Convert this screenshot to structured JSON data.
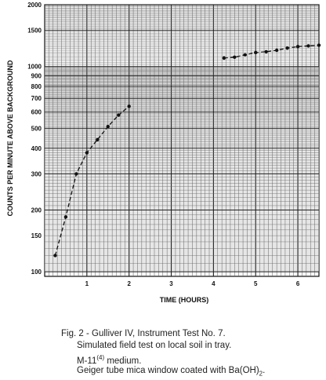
{
  "chart_data": {
    "type": "line",
    "title": "",
    "xlabel": "TIME (HOURS)",
    "ylabel": "COUNTS PER MINUTE ABOVE BACKGROUND",
    "yscale": "log",
    "xlim": [
      0,
      6.5
    ],
    "ylim": [
      95,
      2000
    ],
    "x_ticks": [
      "1",
      "2",
      "3",
      "4",
      "5",
      "6"
    ],
    "y_ticks": [
      "100",
      "150",
      "200",
      "300",
      "400",
      "500",
      "600",
      "700",
      "800",
      "900",
      "1000",
      "1500",
      "2000"
    ],
    "grid": true,
    "series": [
      {
        "x": [
          0.25,
          0.5,
          0.75,
          1.0,
          1.25,
          1.5,
          1.75,
          2.0,
          4.25,
          4.5,
          4.75,
          5.0,
          5.25,
          5.5,
          5.75,
          6.0,
          6.25,
          6.5
        ],
        "values": [
          120,
          185,
          300,
          380,
          440,
          510,
          580,
          640,
          1100,
          1110,
          1140,
          1170,
          1180,
          1200,
          1230,
          1250,
          1260,
          1270
        ]
      }
    ]
  },
  "caption": {
    "fig_label": "Fig. 2 -",
    "title": "Gulliver IV, Instrument Test No. 7.",
    "line2": "Simulated field test on local soil in tray.",
    "line3_prefix": "M-11",
    "line3_sup": "(4)",
    "line3_suffix": " medium.",
    "line4_prefix": "Geiger tube mica window coated with Ba(OH)",
    "line4_sub": "2",
    "line4_suffix": "."
  }
}
